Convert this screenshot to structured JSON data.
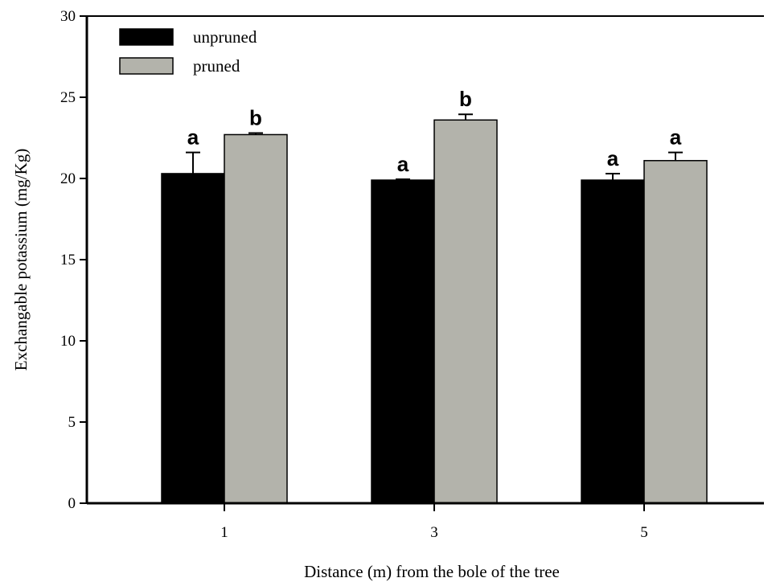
{
  "chart_data": {
    "type": "bar",
    "title": "",
    "xlabel": "Distance (m) from the bole of the tree",
    "ylabel": "Exchangable potassium (mg/Kg)",
    "ylim": [
      0,
      30
    ],
    "yticks": [
      "0",
      "5",
      "10",
      "15",
      "20",
      "25",
      "30"
    ],
    "categories": [
      "1",
      "3",
      "5"
    ],
    "legend_position": "top-left",
    "grid": false,
    "series": [
      {
        "name": "unpruned",
        "color": "#000000",
        "values": [
          20.3,
          19.9,
          19.9
        ],
        "errors": [
          1.3,
          0.05,
          0.4
        ],
        "labels": [
          "a",
          "a",
          "a"
        ]
      },
      {
        "name": "pruned",
        "color": "#b3b3ab",
        "values": [
          22.7,
          23.6,
          21.1
        ],
        "errors": [
          0.1,
          0.35,
          0.5
        ],
        "labels": [
          "b",
          "b",
          "a"
        ]
      }
    ]
  }
}
